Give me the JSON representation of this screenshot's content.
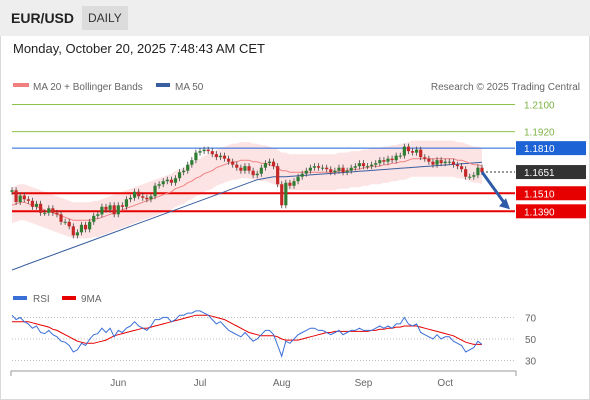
{
  "header": {
    "symbol": "EUR/USD",
    "period": "DAILY",
    "timestamp": "Monday, October 20, 2025 7:48:43 AM CET"
  },
  "legend": {
    "items": [
      {
        "label": "MA 20 + Bollinger Bands",
        "color": "#f08080"
      },
      {
        "label": "MA 50",
        "color": "#3a5fa0"
      }
    ],
    "copyright": "Research © 2025 Trading Central"
  },
  "colors": {
    "bullish": "#2e7d32",
    "bearish": "#c62828",
    "ma20": "#f08080",
    "bollinger_fill": "#fde4e4",
    "ma50": "#3a5fa0",
    "resistance_line": "#8bc34a",
    "pivot_line": "#1e63d6",
    "support_line": "#e60000",
    "arrow": "#2f5aa8",
    "rsi": "#3a6fd8",
    "rsi_ma": "#e60000"
  },
  "chart_data": [
    {
      "type": "candlestick",
      "title": "EUR/USD Daily",
      "ylim": [
        1.09,
        1.215
      ],
      "x_ticks": [
        "Jun",
        "Jul",
        "Aug",
        "Sep",
        "Oct"
      ],
      "last_price": 1.1651,
      "levels": [
        {
          "label": "1.2100",
          "value": 1.21,
          "role": "resistance",
          "color": "#8bc34a"
        },
        {
          "label": "1.1920",
          "value": 1.192,
          "role": "resistance",
          "color": "#8bc34a"
        },
        {
          "label": "1.1810",
          "value": 1.181,
          "role": "pivot",
          "color": "#1e63d6"
        },
        {
          "label": "1.1651",
          "value": 1.1651,
          "role": "last",
          "color": "#333333"
        },
        {
          "label": "1.1510",
          "value": 1.151,
          "role": "support",
          "color": "#e60000"
        },
        {
          "label": "1.1390",
          "value": 1.139,
          "role": "support",
          "color": "#e60000"
        }
      ],
      "close": [
        1.153,
        1.1452,
        1.1495,
        1.147,
        1.146,
        1.142,
        1.144,
        1.138,
        1.138,
        1.141,
        1.138,
        1.137,
        1.132,
        1.132,
        1.129,
        1.123,
        1.125,
        1.13,
        1.127,
        1.132,
        1.136,
        1.137,
        1.142,
        1.14,
        1.143,
        1.137,
        1.143,
        1.142,
        1.147,
        1.148,
        1.152,
        1.149,
        1.148,
        1.147,
        1.149,
        1.156,
        1.157,
        1.159,
        1.16,
        1.158,
        1.161,
        1.165,
        1.166,
        1.17,
        1.173,
        1.178,
        1.179,
        1.18,
        1.179,
        1.177,
        1.175,
        1.176,
        1.174,
        1.172,
        1.17,
        1.168,
        1.166,
        1.169,
        1.166,
        1.163,
        1.164,
        1.168,
        1.171,
        1.172,
        1.169,
        1.157,
        1.143,
        1.158,
        1.156,
        1.159,
        1.162,
        1.164,
        1.166,
        1.168,
        1.169,
        1.168,
        1.168,
        1.167,
        1.165,
        1.166,
        1.168,
        1.165,
        1.166,
        1.168,
        1.169,
        1.171,
        1.169,
        1.169,
        1.17,
        1.171,
        1.173,
        1.172,
        1.174,
        1.173,
        1.176,
        1.176,
        1.182,
        1.179,
        1.178,
        1.18,
        1.175,
        1.174,
        1.172,
        1.17,
        1.173,
        1.171,
        1.172,
        1.172,
        1.17,
        1.169,
        1.167,
        1.162,
        1.162,
        1.163,
        1.168,
        1.1651
      ],
      "ma20": [
        1.143,
        1.144,
        1.145,
        1.145,
        1.144,
        1.143,
        1.142,
        1.141,
        1.14,
        1.139,
        1.138,
        1.137,
        1.136,
        1.135,
        1.134,
        1.133,
        1.133,
        1.133,
        1.133,
        1.133,
        1.134,
        1.134,
        1.135,
        1.136,
        1.137,
        1.138,
        1.139,
        1.14,
        1.141,
        1.142,
        1.143,
        1.144,
        1.145,
        1.146,
        1.147,
        1.148,
        1.149,
        1.15,
        1.151,
        1.152,
        1.154,
        1.155,
        1.156,
        1.158,
        1.159,
        1.161,
        1.162,
        1.164,
        1.165,
        1.166,
        1.168,
        1.169,
        1.17,
        1.171,
        1.172,
        1.172,
        1.173,
        1.173,
        1.173,
        1.172,
        1.172,
        1.171,
        1.171,
        1.17,
        1.169,
        1.168,
        1.166,
        1.166,
        1.165,
        1.165,
        1.165,
        1.165,
        1.165,
        1.165,
        1.165,
        1.165,
        1.165,
        1.165,
        1.165,
        1.165,
        1.166,
        1.166,
        1.166,
        1.167,
        1.167,
        1.167,
        1.168,
        1.168,
        1.169,
        1.169,
        1.169,
        1.17,
        1.17,
        1.171,
        1.171,
        1.172,
        1.172,
        1.173,
        1.174,
        1.174,
        1.174,
        1.174,
        1.174,
        1.174,
        1.174,
        1.174,
        1.174,
        1.174,
        1.174,
        1.173,
        1.173,
        1.172,
        1.171,
        1.17,
        1.17,
        1.169
      ],
      "ma50": [
        1.1,
        1.101,
        1.102,
        1.103,
        1.104,
        1.105,
        1.106,
        1.107,
        1.108,
        1.109,
        1.11,
        1.111,
        1.112,
        1.113,
        1.114,
        1.115,
        1.116,
        1.117,
        1.118,
        1.119,
        1.12,
        1.121,
        1.122,
        1.123,
        1.124,
        1.125,
        1.126,
        1.127,
        1.128,
        1.129,
        1.13,
        1.131,
        1.132,
        1.133,
        1.134,
        1.135,
        1.136,
        1.137,
        1.138,
        1.139,
        1.14,
        1.141,
        1.142,
        1.143,
        1.144,
        1.145,
        1.146,
        1.147,
        1.148,
        1.149,
        1.15,
        1.151,
        1.152,
        1.153,
        1.154,
        1.155,
        1.156,
        1.157,
        1.158,
        1.159,
        1.16,
        1.1605,
        1.161,
        1.1615,
        1.162,
        1.162,
        1.162,
        1.162,
        1.1622,
        1.1624,
        1.1626,
        1.1628,
        1.163,
        1.1632,
        1.1634,
        1.1636,
        1.1638,
        1.164,
        1.1642,
        1.1644,
        1.1646,
        1.1648,
        1.165,
        1.1652,
        1.1654,
        1.1656,
        1.1658,
        1.166,
        1.1662,
        1.1664,
        1.1666,
        1.1668,
        1.167,
        1.1672,
        1.1674,
        1.1676,
        1.1678,
        1.168,
        1.1682,
        1.1684,
        1.1686,
        1.1688,
        1.169,
        1.1692,
        1.1694,
        1.1696,
        1.1698,
        1.17,
        1.1702,
        1.1704,
        1.1706,
        1.1708,
        1.171,
        1.1712,
        1.1714,
        1.1716
      ],
      "bollinger_width": 0.012,
      "forecast_target": 1.139
    },
    {
      "type": "line",
      "title": "",
      "legend": [
        "RSI",
        "9MA"
      ],
      "ylim": [
        25,
        75
      ],
      "y_ticks": [
        30,
        50,
        70
      ],
      "rsi": [
        72,
        68,
        70,
        66,
        64,
        60,
        62,
        56,
        55,
        58,
        54,
        52,
        48,
        47,
        44,
        38,
        40,
        46,
        44,
        50,
        54,
        55,
        60,
        56,
        60,
        52,
        58,
        56,
        60,
        62,
        66,
        62,
        60,
        58,
        62,
        68,
        68,
        70,
        70,
        66,
        68,
        72,
        72,
        74,
        74,
        76,
        76,
        74,
        72,
        68,
        64,
        66,
        62,
        58,
        56,
        54,
        52,
        56,
        52,
        48,
        50,
        54,
        58,
        58,
        54,
        44,
        34,
        48,
        46,
        50,
        54,
        56,
        58,
        60,
        60,
        58,
        58,
        56,
        54,
        56,
        58,
        54,
        56,
        58,
        58,
        60,
        58,
        58,
        58,
        60,
        62,
        60,
        62,
        60,
        64,
        64,
        70,
        64,
        62,
        64,
        56,
        54,
        52,
        50,
        54,
        50,
        52,
        52,
        48,
        46,
        44,
        38,
        40,
        42,
        48,
        45
      ],
      "rsi_ma9": [
        66,
        66,
        66,
        66,
        66,
        65,
        64,
        63,
        62,
        61,
        59,
        58,
        56,
        54,
        52,
        50,
        48,
        47,
        46,
        46,
        46,
        47,
        48,
        49,
        51,
        53,
        54,
        55,
        56,
        57,
        58,
        59,
        60,
        60,
        61,
        62,
        63,
        64,
        65,
        66,
        67,
        68,
        69,
        70,
        71,
        72,
        72,
        72,
        72,
        71,
        70,
        69,
        68,
        66,
        64,
        62,
        60,
        58,
        56,
        55,
        54,
        53,
        53,
        53,
        53,
        52,
        50,
        49,
        49,
        49,
        49,
        50,
        51,
        52,
        53,
        54,
        55,
        56,
        56,
        57,
        57,
        57,
        57,
        57,
        57,
        57,
        57,
        57,
        58,
        58,
        59,
        59,
        60,
        60,
        61,
        61,
        62,
        62,
        62,
        62,
        61,
        60,
        59,
        58,
        57,
        56,
        55,
        54,
        53,
        51,
        49,
        47,
        46,
        45,
        45,
        45
      ]
    }
  ]
}
